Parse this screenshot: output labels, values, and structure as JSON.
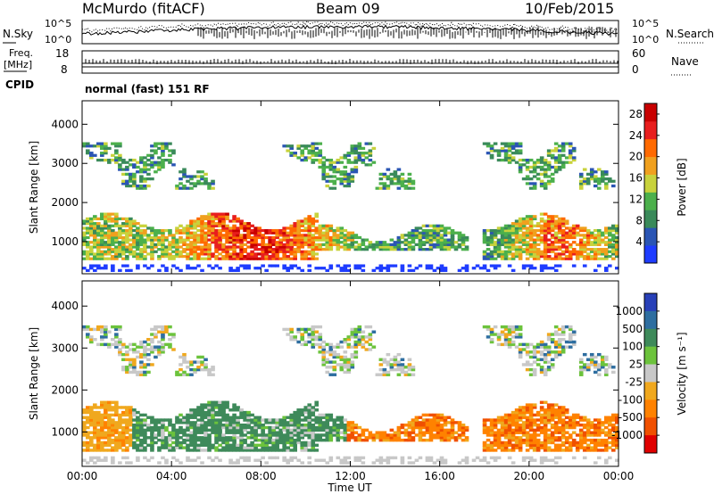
{
  "header": {
    "station": "McMurdo (fitACF)",
    "beam": "Beam 09",
    "date": "10/Feb/2015"
  },
  "top_panels": {
    "nsky_label": "N.Sky",
    "nsearch_label": "N.Search",
    "noise_ticks": [
      "10^5",
      "10^0"
    ],
    "freq_label": "Freq.",
    "freq_unit": "[MHz]",
    "freq_ticks": [
      "18",
      "8"
    ],
    "nave_label": "Nave",
    "nave_ticks": [
      "60",
      "0"
    ],
    "cpid_label": "CPID",
    "cpid_text": "normal (fast) 151 RF"
  },
  "colors": {
    "power": [
      "#1e3cff",
      "#2a55b4",
      "#3a8a5a",
      "#4cb04c",
      "#c8d23c",
      "#f0a01e",
      "#ff6a00",
      "#e81e1e",
      "#c80000"
    ],
    "velocity": [
      "#2840b8",
      "#2e6ea0",
      "#3e8a5a",
      "#6cc33c",
      "#c8c8c8",
      "#f0a81e",
      "#ff8200",
      "#f05000",
      "#e00000"
    ],
    "ground": "#808080"
  },
  "chart_data": [
    {
      "type": "heatmap",
      "name": "power",
      "xlabel": "",
      "ylabel": "Slant Range [km]",
      "x_ticks": [
        "00:00",
        "04:00",
        "08:00",
        "12:00",
        "16:00",
        "20:00",
        "00:00"
      ],
      "y_ticks": [
        1000,
        2000,
        3000,
        4000
      ],
      "xlim": [
        0,
        24
      ],
      "ylim": [
        180,
        4600
      ],
      "colorbar": {
        "label": "Power [dB]",
        "ticks": [
          4,
          8,
          12,
          16,
          20,
          24,
          28
        ],
        "range": [
          0,
          30
        ]
      },
      "summary": [
        {
          "hours": [
            0,
            4
          ],
          "range_km": [
            500,
            1700
          ],
          "level_dB": "8-24"
        },
        {
          "hours": [
            4,
            10
          ],
          "range_km": [
            500,
            1700
          ],
          "level_dB": "16-30"
        },
        {
          "hours": [
            10,
            17
          ],
          "range_km": [
            700,
            1500
          ],
          "level_dB": "8-20"
        },
        {
          "hours": [
            18,
            24
          ],
          "range_km": [
            600,
            1600
          ],
          "level_dB": "8-28"
        },
        {
          "hours": [
            0,
            24
          ],
          "range_km": [
            2300,
            3500
          ],
          "level_dB": "4-16"
        }
      ]
    },
    {
      "type": "heatmap",
      "name": "velocity",
      "xlabel": "Time UT",
      "ylabel": "Slant Range [km]",
      "x_ticks": [
        "00:00",
        "04:00",
        "08:00",
        "12:00",
        "16:00",
        "20:00",
        "00:00"
      ],
      "y_ticks": [
        1000,
        2000,
        3000,
        4000
      ],
      "xlim": [
        0,
        24
      ],
      "ylim": [
        180,
        4600
      ],
      "colorbar": {
        "label": "Velocity [m s⁻¹]",
        "ticks": [
          1000,
          500,
          100,
          25,
          -25,
          -100,
          -500,
          -1000
        ]
      },
      "summary": [
        {
          "hours": [
            0,
            2
          ],
          "range_km": [
            600,
            1700
          ],
          "velocity_ms": "-100 to -500"
        },
        {
          "hours": [
            2,
            12
          ],
          "range_km": [
            300,
            1700
          ],
          "velocity_ms": "100 to 500"
        },
        {
          "hours": [
            12,
            24
          ],
          "range_km": [
            300,
            1500
          ],
          "velocity_ms": "-100 to -1000"
        },
        {
          "hours": [
            0,
            24
          ],
          "range_km": [
            2300,
            3500
          ],
          "velocity_ms": "-100 to 100"
        }
      ]
    }
  ]
}
